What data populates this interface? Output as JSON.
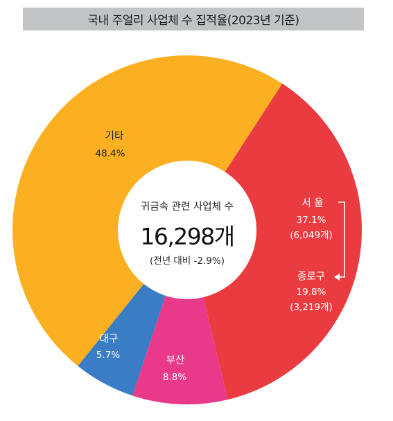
{
  "title": "국내 주얼리 사업체 수 집적율(2023년 기준)",
  "chart_data": {
    "type": "pie",
    "title": "국내 주얼리 사업체 수 집적율(2023년 기준)",
    "slices": [
      {
        "name": "서 울",
        "value": 37.1,
        "pct_label": "37.1%",
        "count_label": "(6,049개)",
        "color": "#ea3b41"
      },
      {
        "name": "부산",
        "value": 8.8,
        "pct_label": "8.8%",
        "color": "#e8398a"
      },
      {
        "name": "대구",
        "value": 5.7,
        "pct_label": "5.7%",
        "color": "#3a7dc4"
      },
      {
        "name": "기타",
        "value": 48.4,
        "pct_label": "48.4%",
        "color": "#fbb022"
      }
    ],
    "sub_annotation": {
      "name": "종로구",
      "pct_label": "19.8%",
      "count_label": "(3,219개)"
    },
    "center": {
      "caption": "귀금속 관련 사업체 수",
      "total": "16,298개",
      "change": "(전년 대비 -2.9%)"
    }
  }
}
